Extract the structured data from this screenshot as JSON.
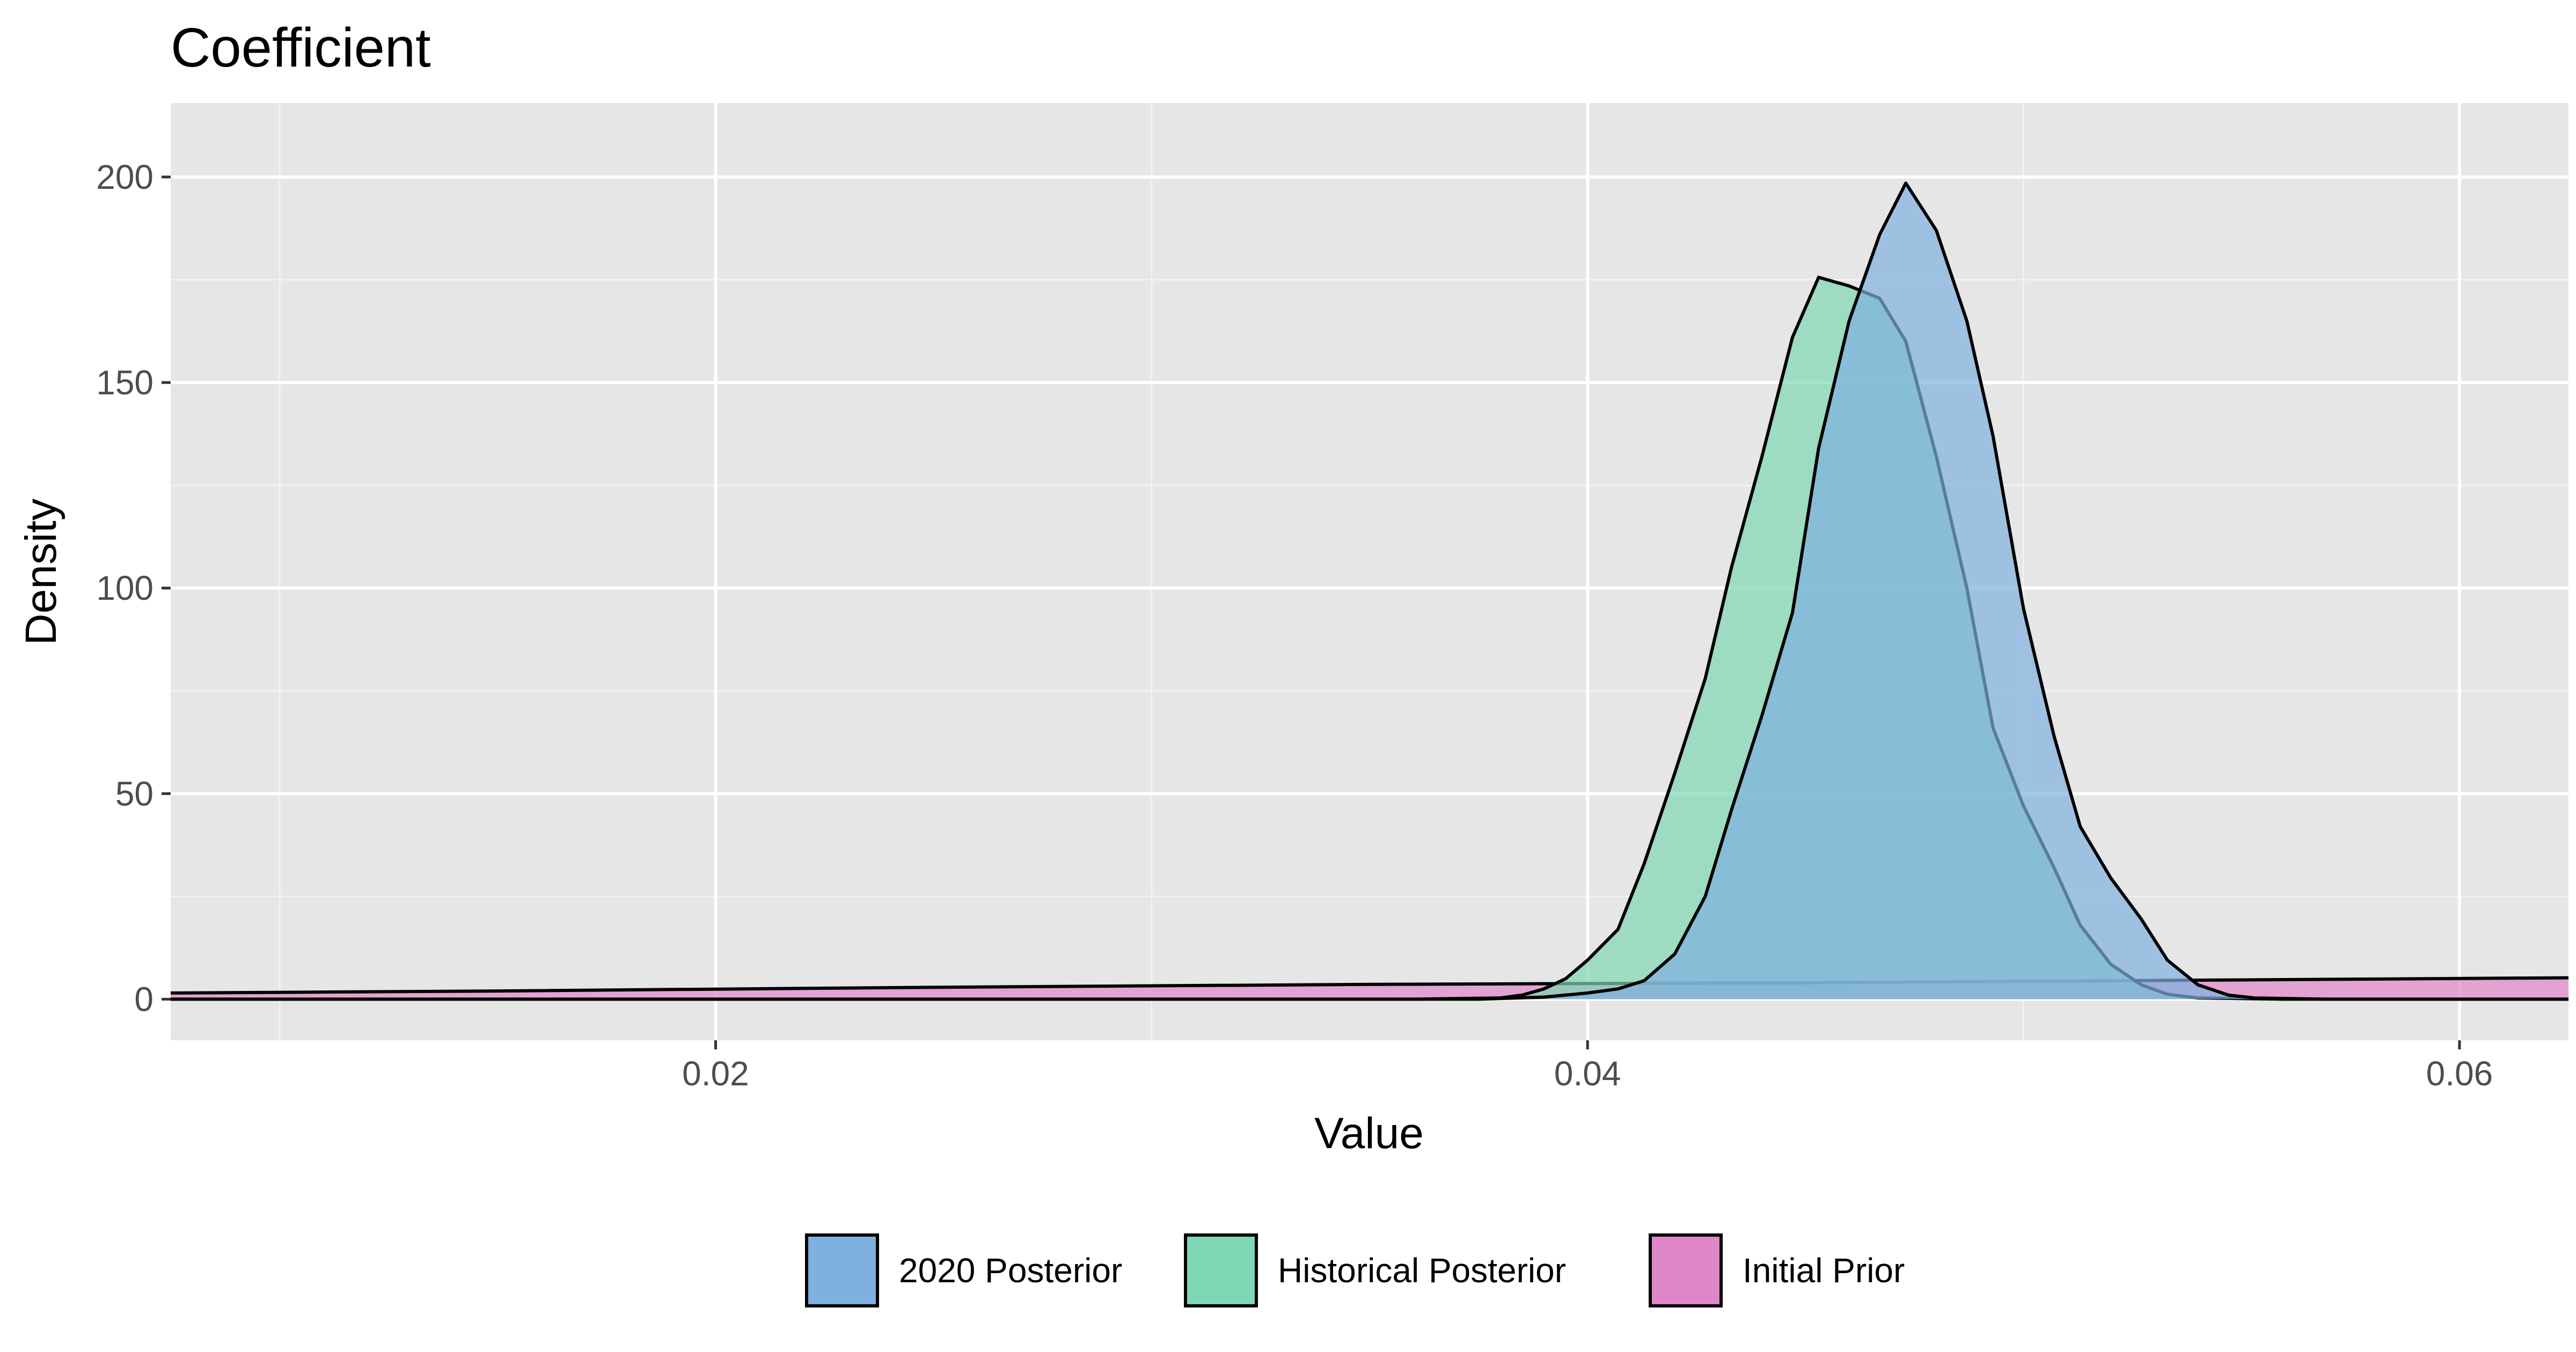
{
  "chart_data": {
    "type": "area",
    "title": "Coefficient",
    "xlabel": "Value",
    "ylabel": "Density",
    "xlim": [
      0.0075,
      0.0625
    ],
    "ylim": [
      -10,
      218
    ],
    "x_ticks": [
      0.02,
      0.04,
      0.06
    ],
    "x_tick_labels": [
      "0.02",
      "0.04",
      "0.06"
    ],
    "x_minor_ticks": [
      0.01,
      0.03,
      0.05
    ],
    "y_ticks": [
      0,
      50,
      100,
      150,
      200
    ],
    "y_tick_labels": [
      "0",
      "50",
      "100",
      "150",
      "200"
    ],
    "y_minor_ticks": [
      25,
      75,
      125,
      175
    ],
    "grid": true,
    "legend_position": "bottom",
    "series": [
      {
        "name": "Initial Prior",
        "color": "#DF86C8",
        "points": [
          [
            0.0075,
            1.5
          ],
          [
            0.015,
            2.0
          ],
          [
            0.025,
            2.9
          ],
          [
            0.035,
            3.6
          ],
          [
            0.045,
            4.0
          ],
          [
            0.0625,
            5.2
          ]
        ]
      },
      {
        "name": "Historical Posterior",
        "color": "#7ED6B4",
        "points": [
          [
            0.0075,
            0
          ],
          [
            0.036,
            0
          ],
          [
            0.038,
            0.3
          ],
          [
            0.0385,
            1
          ],
          [
            0.039,
            2.5
          ],
          [
            0.0395,
            5
          ],
          [
            0.04,
            9.5
          ],
          [
            0.0407,
            17
          ],
          [
            0.0413,
            33
          ],
          [
            0.042,
            55
          ],
          [
            0.0427,
            78
          ],
          [
            0.0433,
            105
          ],
          [
            0.044,
            132
          ],
          [
            0.0447,
            161
          ],
          [
            0.0453,
            175.6
          ],
          [
            0.046,
            173.5
          ],
          [
            0.0467,
            170.5
          ],
          [
            0.0473,
            160
          ],
          [
            0.048,
            132
          ],
          [
            0.0487,
            100
          ],
          [
            0.0493,
            66
          ],
          [
            0.05,
            47
          ],
          [
            0.0507,
            32
          ],
          [
            0.0513,
            18
          ],
          [
            0.052,
            8.5
          ],
          [
            0.0527,
            3.5
          ],
          [
            0.0533,
            1.2
          ],
          [
            0.054,
            0.3
          ],
          [
            0.056,
            0
          ],
          [
            0.0625,
            0
          ]
        ]
      },
      {
        "name": "2020 Posterior",
        "color": "#7FB0E0",
        "points": [
          [
            0.0075,
            0
          ],
          [
            0.0375,
            0
          ],
          [
            0.039,
            0.5
          ],
          [
            0.04,
            1.5
          ],
          [
            0.0407,
            2.5
          ],
          [
            0.0413,
            4.5
          ],
          [
            0.042,
            11
          ],
          [
            0.0427,
            25
          ],
          [
            0.0433,
            46
          ],
          [
            0.044,
            69
          ],
          [
            0.0447,
            94
          ],
          [
            0.0453,
            134
          ],
          [
            0.046,
            165
          ],
          [
            0.0467,
            186
          ],
          [
            0.0473,
            198.5
          ],
          [
            0.048,
            187
          ],
          [
            0.0487,
            165
          ],
          [
            0.0493,
            137
          ],
          [
            0.05,
            95
          ],
          [
            0.0507,
            64
          ],
          [
            0.0513,
            42
          ],
          [
            0.052,
            29.5
          ],
          [
            0.0527,
            19.5
          ],
          [
            0.0533,
            9.5
          ],
          [
            0.054,
            3.5
          ],
          [
            0.0547,
            1
          ],
          [
            0.0553,
            0.3
          ],
          [
            0.057,
            0
          ],
          [
            0.0625,
            0
          ]
        ]
      }
    ],
    "legend": [
      {
        "name": "2020 Posterior",
        "color": "#7FB0E0"
      },
      {
        "name": "Historical Posterior",
        "color": "#7ED6B4"
      },
      {
        "name": "Initial Prior",
        "color": "#DF86C8"
      }
    ]
  }
}
